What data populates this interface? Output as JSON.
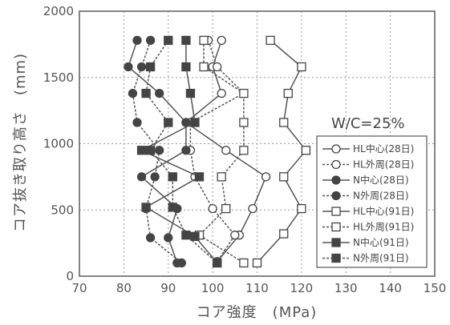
{
  "chart_data": {
    "type": "line",
    "xlabel": "コア強度　(MPa)",
    "ylabel": "コア抜き取り高さ　(mm)",
    "xlim": [
      70,
      150
    ],
    "ylim": [
      0,
      2000
    ],
    "x_ticks": [
      "70",
      "80",
      "90",
      "100",
      "110",
      "120",
      "130",
      "140",
      "150"
    ],
    "y_ticks": [
      "0",
      "500",
      "1000",
      "1500",
      "2000"
    ],
    "grid": "dotted",
    "annotation": "W/C=25%",
    "legend_position": "right",
    "series": [
      {
        "name": "HL中心(28日)",
        "marker": "open-circle",
        "line": "solid",
        "points": [
          [
            102,
            1780
          ],
          [
            100,
            1580
          ],
          [
            102,
            1380
          ],
          [
            94,
            1160
          ],
          [
            103,
            950
          ],
          [
            112,
            750
          ],
          [
            109,
            510
          ],
          [
            106,
            310
          ],
          [
            101,
            110
          ]
        ]
      },
      {
        "name": "HL外周(28日)",
        "marker": "open-circle",
        "line": "dashed",
        "points": [
          [
            99,
            1780
          ],
          [
            101,
            1580
          ],
          [
            107,
            1380
          ],
          [
            95,
            1160
          ],
          [
            95,
            950
          ],
          [
            96,
            750
          ],
          [
            100,
            510
          ],
          [
            105,
            310
          ],
          [
            101,
            110
          ]
        ]
      },
      {
        "name": "N中心(28日)",
        "marker": "filled-circle",
        "line": "solid",
        "points": [
          [
            83,
            1780
          ],
          [
            81,
            1580
          ],
          [
            88,
            1380
          ],
          [
            94,
            1160
          ],
          [
            94,
            950
          ],
          [
            84,
            750
          ],
          [
            92,
            510
          ],
          [
            90,
            290
          ],
          [
            92,
            100
          ]
        ]
      },
      {
        "name": "N外周(28日)",
        "marker": "filled-circle",
        "line": "dashed",
        "points": [
          [
            86,
            1780
          ],
          [
            84,
            1580
          ],
          [
            82,
            1380
          ],
          [
            83,
            1160
          ],
          [
            88,
            950
          ],
          [
            87,
            750
          ],
          [
            85,
            510
          ],
          [
            86,
            290
          ],
          [
            93,
            100
          ]
        ]
      },
      {
        "name": "HL中心(91日)",
        "marker": "open-square",
        "line": "solid",
        "points": [
          [
            113,
            1780
          ],
          [
            120,
            1580
          ],
          [
            117,
            1380
          ],
          [
            116,
            1160
          ],
          [
            121,
            950
          ],
          [
            116,
            750
          ],
          [
            120,
            510
          ],
          [
            116,
            320
          ],
          [
            110,
            100
          ]
        ]
      },
      {
        "name": "HL外周(91日)",
        "marker": "open-square",
        "line": "dashed",
        "points": [
          [
            98,
            1780
          ],
          [
            98,
            1580
          ],
          [
            107,
            1380
          ],
          [
            107,
            1160
          ],
          [
            107,
            950
          ],
          [
            102,
            750
          ],
          [
            103,
            510
          ],
          [
            97,
            310
          ],
          [
            107,
            100
          ]
        ]
      },
      {
        "name": "N中心(91日)",
        "marker": "filled-square",
        "line": "solid",
        "points": [
          [
            94,
            1780
          ],
          [
            94,
            1580
          ],
          [
            95,
            1380
          ],
          [
            96,
            1160
          ],
          [
            84,
            950
          ],
          [
            97,
            750
          ],
          [
            85,
            520
          ],
          [
            96,
            300
          ],
          [
            101,
            100
          ]
        ]
      },
      {
        "name": "N外周(91日)",
        "marker": "filled-square",
        "line": "dashed",
        "points": [
          [
            90,
            1780
          ],
          [
            86,
            1580
          ],
          [
            85,
            1380
          ],
          [
            90,
            1160
          ],
          [
            86,
            950
          ],
          [
            91,
            750
          ],
          [
            91,
            520
          ],
          [
            94,
            310
          ],
          [
            101,
            100
          ]
        ]
      }
    ]
  }
}
